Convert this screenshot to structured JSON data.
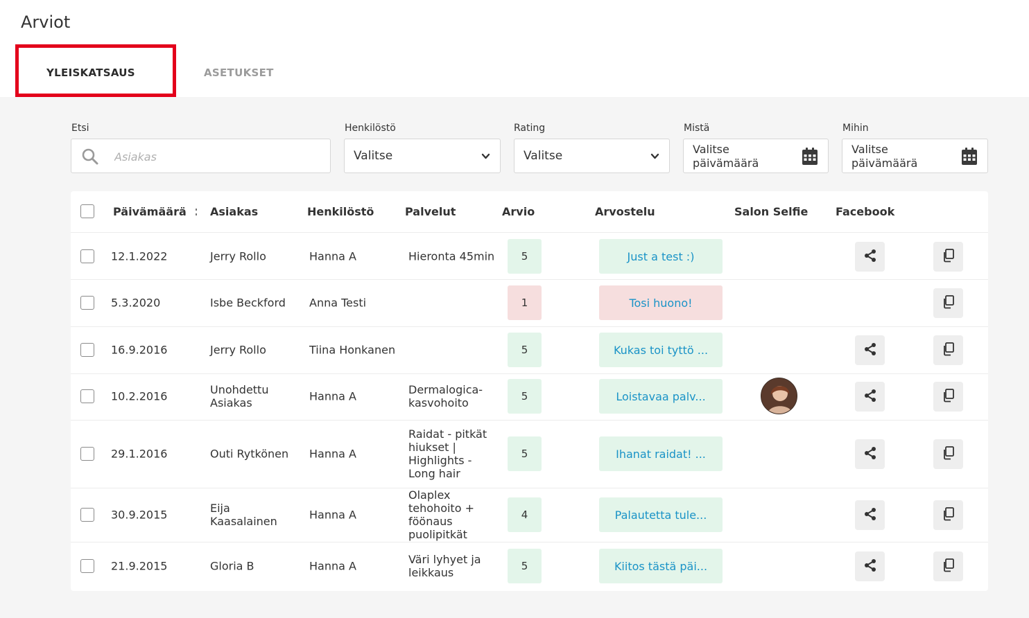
{
  "app": {
    "title": "Arviot"
  },
  "tabs": [
    {
      "label": "YLEISKATSAUS",
      "active": true
    },
    {
      "label": "ASETUKSET",
      "active": false
    }
  ],
  "filters": {
    "search": {
      "label": "Etsi",
      "placeholder": "Asiakas"
    },
    "staff": {
      "label": "Henkilöstö",
      "value": "Valitse"
    },
    "rating": {
      "label": "Rating",
      "value": "Valitse"
    },
    "from": {
      "label": "Mistä",
      "value": "Valitse päivämäärä"
    },
    "to": {
      "label": "Mihin",
      "value": "Valitse päivämäärä"
    }
  },
  "table": {
    "headers": {
      "date": "Päivämäärä",
      "customer": "Asiakas",
      "staff": "Henkilöstö",
      "services": "Palvelut",
      "rating": "Arvio",
      "review": "Arvostelu",
      "selfie": "Salon Selfie",
      "facebook": "Facebook"
    },
    "rows": [
      {
        "date": "12.1.2022",
        "customer": "Jerry Rollo",
        "staff": "Hanna A",
        "services": "Hieronta 45min",
        "rating": "5",
        "review": "Just a test :)",
        "sentiment": "good",
        "selfie": false,
        "facebook": true
      },
      {
        "date": "5.3.2020",
        "customer": "Isbe Beckford",
        "staff": "Anna Testi",
        "services": "",
        "rating": "1",
        "review": "Tosi huono!",
        "sentiment": "bad",
        "selfie": false,
        "facebook": false
      },
      {
        "date": "16.9.2016",
        "customer": "Jerry Rollo",
        "staff": "Tiina Honkanen",
        "services": "",
        "rating": "5",
        "review": "Kukas toi tyttö ...",
        "sentiment": "good",
        "selfie": false,
        "facebook": true
      },
      {
        "date": "10.2.2016",
        "customer": "Unohdettu Asiakas",
        "staff": "Hanna A",
        "services": "Dermalogica- kasvohoito",
        "rating": "5",
        "review": "Loistavaa palv...",
        "sentiment": "good",
        "selfie": true,
        "facebook": true
      },
      {
        "date": "29.1.2016",
        "customer": "Outi Rytkönen",
        "staff": "Hanna A",
        "services": "Raidat - pitkät hiukset | Highlights - Long hair",
        "rating": "5",
        "review": "Ihanat raidat! ...",
        "sentiment": "good",
        "selfie": false,
        "facebook": true
      },
      {
        "date": "30.9.2015",
        "customer": "Eija Kaasalainen",
        "staff": "Hanna A",
        "services": "Olaplex tehohoito + föönaus puolipitkät",
        "rating": "4",
        "review": "Palautetta tule...",
        "sentiment": "good",
        "selfie": false,
        "facebook": true
      },
      {
        "date": "21.9.2015",
        "customer": "Gloria B",
        "staff": "Hanna A",
        "services": "Väri lyhyet ja leikkaus",
        "rating": "5",
        "review": "Kiitos tästä päi...",
        "sentiment": "good",
        "selfie": false,
        "facebook": true
      }
    ]
  },
  "icons": {
    "search": "search-icon",
    "chevron": "chevron-down-icon",
    "calendar": "calendar-icon",
    "share": "share-icon",
    "copy": "copy-icon",
    "sort": "sort-icon"
  },
  "colors": {
    "accent": "#1a93c7",
    "good_bg": "#e3f5ea",
    "bad_bg": "#f6dede",
    "highlight": "#e3001b"
  }
}
